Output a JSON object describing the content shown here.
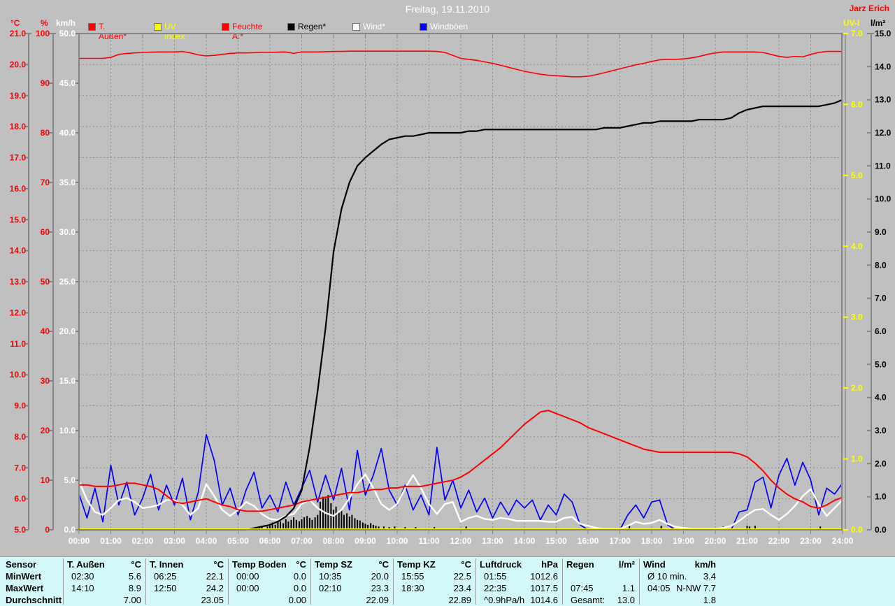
{
  "header": {
    "title": "Freitag, 19.11.2010",
    "author": "Jarz Erich"
  },
  "legend": [
    {
      "label": "T. Außen*",
      "color": "#ff0000",
      "label_color": "#ff0000"
    },
    {
      "label": "UV Index",
      "color": "#ffff00",
      "label_color": "#ffff00"
    },
    {
      "label": "Feuchte A.*",
      "color": "#ff0000",
      "label_color": "#ff0000"
    },
    {
      "label": "Regen*",
      "color": "#000000",
      "label_color": "#000000"
    },
    {
      "label": "Wind*",
      "color": "#ffffff",
      "label_color": "#ffffff"
    },
    {
      "label": "Windböen",
      "color": "#0000ff",
      "label_color": "#ffffff"
    }
  ],
  "chart_data": {
    "type": "line",
    "title": "Freitag, 19.11.2010",
    "x_axis": {
      "unit": "h",
      "min": 0,
      "max": 24,
      "tick_step_hours": 1
    },
    "x_labels": [
      "00:00",
      "01:00",
      "02:00",
      "03:00",
      "04:00",
      "05:00",
      "06:00",
      "07:00",
      "08:00",
      "09:00",
      "10:00",
      "11:00",
      "12:00",
      "13:00",
      "14:00",
      "15:00",
      "16:00",
      "17:00",
      "18:00",
      "19:00",
      "20:00",
      "21:00",
      "22:00",
      "23:00",
      "24:00"
    ],
    "grid": {
      "vertical_every_hour": true,
      "horizontal_every_degC": true,
      "color": "#8d8d8d",
      "style": "dashed"
    },
    "axes": [
      {
        "id": "temp",
        "unit": "°C",
        "min": 5,
        "max": 21,
        "step": 1,
        "decimals": 1,
        "color": "#ff0000",
        "side": "left"
      },
      {
        "id": "pct",
        "unit": "%",
        "min": 0,
        "max": 100,
        "step": 10,
        "decimals": 0,
        "color": "#ff0000",
        "side": "left"
      },
      {
        "id": "kmh",
        "unit": "km/h",
        "min": 0,
        "max": 50,
        "step": 5,
        "decimals": 1,
        "color": "#ffffff",
        "side": "left"
      },
      {
        "id": "uv",
        "unit": "UV-I",
        "min": 0,
        "max": 7,
        "step": 1,
        "decimals": 1,
        "color": "#ffff00",
        "side": "right"
      },
      {
        "id": "lm2",
        "unit": "l/m²",
        "min": 0,
        "max": 15,
        "step": 1,
        "decimals": 1,
        "color": "#000000",
        "side": "right"
      }
    ],
    "series": [
      {
        "name": "Feuchte A.",
        "axis": "pct",
        "color": "#ff0000",
        "width": 1.6,
        "step_h": 0.25,
        "values": [
          95.0,
          95.0,
          95.0,
          95.0,
          95.2,
          95.8,
          96.0,
          96.1,
          96.2,
          96.25,
          96.3,
          96.3,
          96.3,
          96.4,
          96.1,
          95.7,
          95.5,
          95.6,
          95.8,
          96.0,
          96.1,
          96.1,
          96.15,
          96.2,
          96.2,
          96.25,
          96.3,
          96.0,
          96.3,
          96.3,
          96.3,
          96.35,
          96.4,
          96.4,
          96.45,
          96.45,
          96.45,
          96.45,
          96.45,
          96.45,
          96.45,
          96.45,
          96.45,
          96.45,
          96.45,
          96.4,
          96.2,
          95.6,
          95.0,
          94.8,
          94.6,
          94.3,
          94.0,
          93.6,
          93.2,
          92.8,
          92.4,
          92.1,
          91.8,
          91.6,
          91.5,
          91.4,
          91.3,
          91.3,
          91.4,
          91.7,
          92.1,
          92.5,
          92.9,
          93.3,
          93.7,
          94.0,
          94.4,
          94.7,
          94.8,
          94.8,
          94.9,
          95.1,
          95.4,
          95.8,
          96.1,
          96.3,
          96.3,
          96.3,
          96.3,
          96.3,
          96.2,
          95.8,
          95.4,
          95.2,
          95.4,
          95.3,
          95.8,
          96.2,
          96.4,
          96.4,
          96.4
        ]
      },
      {
        "name": "Windböen",
        "axis": "kmh",
        "color": "#0000ff",
        "width": 1.7,
        "step_h": 0.25,
        "values": [
          3.6,
          1.2,
          4.2,
          0.8,
          6.5,
          2.5,
          4.8,
          1.5,
          3.2,
          5.6,
          2.0,
          4.5,
          2.5,
          5.2,
          1.0,
          3.8,
          9.6,
          7.0,
          2.5,
          4.2,
          1.5,
          4.0,
          5.8,
          2.2,
          3.5,
          1.8,
          4.8,
          2.5,
          4.2,
          6.0,
          2.8,
          5.5,
          3.0,
          6.2,
          2.0,
          8.0,
          3.5,
          5.5,
          8.2,
          4.0,
          2.5,
          4.5,
          2.0,
          3.5,
          1.5,
          8.3,
          3.0,
          5.0,
          2.2,
          4.0,
          1.8,
          3.2,
          1.2,
          2.8,
          1.5,
          3.0,
          2.2,
          3.0,
          1.0,
          2.5,
          1.5,
          3.6,
          2.8,
          0.5,
          0,
          0,
          0,
          0,
          0,
          1.5,
          2.5,
          1.2,
          2.8,
          3.0,
          0.5,
          0,
          0,
          0,
          0,
          0,
          0,
          0,
          0,
          1.8,
          2.0,
          4.8,
          5.3,
          2.2,
          5.5,
          7.2,
          4.5,
          6.8,
          5.0,
          1.5,
          4.2,
          3.6,
          4.7
        ]
      },
      {
        "name": "Wind",
        "axis": "kmh",
        "color": "#ffffff",
        "width": 2.4,
        "step_h": 0.25,
        "values": [
          4.9,
          3.0,
          1.8,
          1.5,
          2.2,
          3.0,
          3.2,
          2.8,
          2.2,
          2.3,
          2.5,
          3.0,
          3.0,
          2.5,
          1.5,
          2.2,
          4.6,
          3.4,
          2.0,
          1.4,
          2.0,
          2.8,
          2.4,
          1.6,
          1.1,
          1.0,
          1.4,
          1.6,
          2.6,
          3.0,
          2.2,
          1.7,
          1.4,
          2.0,
          3.2,
          4.6,
          5.6,
          4.2,
          2.6,
          2.0,
          2.6,
          4.2,
          5.5,
          4.2,
          2.6,
          1.6,
          2.6,
          2.8,
          0.8,
          1.2,
          1.4,
          1.1,
          1.0,
          1.2,
          1.1,
          0.9,
          0.9,
          0.9,
          0.9,
          0.8,
          0.8,
          1.2,
          1.3,
          0.6,
          0.4,
          0.2,
          0.1,
          0.1,
          0.1,
          0.4,
          0.8,
          0.6,
          0.7,
          1.0,
          0.6,
          0.3,
          0.2,
          0.1,
          0.1,
          0.1,
          0.1,
          0.2,
          0.4,
          0.9,
          1.5,
          2.0,
          2.1,
          1.5,
          1.0,
          1.6,
          2.4,
          3.4,
          4.1,
          2.6,
          1.4,
          2.2,
          3.0
        ]
      },
      {
        "name": "T. Außen",
        "axis": "temp",
        "color": "#ff0000",
        "width": 2,
        "step_h": 0.25,
        "values": [
          6.45,
          6.45,
          6.4,
          6.4,
          6.4,
          6.45,
          6.5,
          6.5,
          6.45,
          6.4,
          6.3,
          6.1,
          5.9,
          5.85,
          5.9,
          5.95,
          6.0,
          5.9,
          5.8,
          5.75,
          5.65,
          5.6,
          5.6,
          5.6,
          5.65,
          5.7,
          5.75,
          5.8,
          5.9,
          5.95,
          6.0,
          6.05,
          6.1,
          6.15,
          6.2,
          6.2,
          6.25,
          6.3,
          6.3,
          6.35,
          6.35,
          6.4,
          6.4,
          6.4,
          6.45,
          6.5,
          6.55,
          6.6,
          6.7,
          6.85,
          7.05,
          7.25,
          7.45,
          7.65,
          7.9,
          8.15,
          8.4,
          8.6,
          8.8,
          8.85,
          8.75,
          8.65,
          8.55,
          8.45,
          8.3,
          8.2,
          8.1,
          8.0,
          7.9,
          7.8,
          7.7,
          7.6,
          7.55,
          7.5,
          7.5,
          7.5,
          7.5,
          7.5,
          7.5,
          7.5,
          7.5,
          7.5,
          7.5,
          7.45,
          7.35,
          7.15,
          6.9,
          6.6,
          6.35,
          6.15,
          6.0,
          5.9,
          5.75,
          5.7,
          5.8,
          5.95,
          6.05
        ]
      },
      {
        "name": "Regen (Summe)",
        "axis": "lm2",
        "color": "#000000",
        "width": 2.2,
        "step_h": 0.25,
        "values": [
          0,
          0,
          0,
          0,
          0,
          0,
          0,
          0,
          0,
          0,
          0,
          0,
          0,
          0,
          0,
          0,
          0,
          0,
          0,
          0,
          0,
          0,
          0.05,
          0.1,
          0.15,
          0.25,
          0.4,
          0.65,
          1.2,
          2.5,
          4.2,
          6.1,
          8.4,
          9.7,
          10.5,
          11.0,
          11.25,
          11.45,
          11.65,
          11.8,
          11.85,
          11.9,
          11.9,
          11.95,
          12.0,
          12.0,
          12.0,
          12.0,
          12.0,
          12.05,
          12.05,
          12.1,
          12.1,
          12.1,
          12.1,
          12.1,
          12.1,
          12.1,
          12.1,
          12.1,
          12.1,
          12.1,
          12.1,
          12.1,
          12.1,
          12.1,
          12.15,
          12.15,
          12.15,
          12.2,
          12.25,
          12.3,
          12.3,
          12.35,
          12.35,
          12.35,
          12.35,
          12.35,
          12.4,
          12.4,
          12.4,
          12.4,
          12.45,
          12.6,
          12.7,
          12.75,
          12.8,
          12.8,
          12.8,
          12.8,
          12.8,
          12.8,
          12.8,
          12.8,
          12.85,
          12.9,
          13.0
        ]
      },
      {
        "name": "UV Index",
        "axis": "uv",
        "color": "#ffff00",
        "width": 2,
        "step_h": 12,
        "values": [
          0,
          0,
          0
        ]
      }
    ],
    "rain_bars": {
      "axis": "lm2",
      "color": "#000000",
      "points": [
        [
          5.67,
          0.08
        ],
        [
          5.75,
          0.12
        ],
        [
          5.92,
          0.1
        ],
        [
          6.0,
          0.12
        ],
        [
          6.08,
          0.22
        ],
        [
          6.17,
          0.15
        ],
        [
          6.25,
          0.3
        ],
        [
          6.33,
          0.25
        ],
        [
          6.42,
          0.2
        ],
        [
          6.5,
          0.32
        ],
        [
          6.58,
          0.25
        ],
        [
          6.67,
          0.3
        ],
        [
          6.75,
          0.38
        ],
        [
          6.83,
          0.3
        ],
        [
          6.92,
          0.26
        ],
        [
          7.0,
          0.32
        ],
        [
          7.08,
          0.38
        ],
        [
          7.17,
          0.42
        ],
        [
          7.25,
          0.36
        ],
        [
          7.33,
          0.3
        ],
        [
          7.42,
          0.38
        ],
        [
          7.5,
          0.45
        ],
        [
          7.58,
          0.85
        ],
        [
          7.67,
          1.0
        ],
        [
          7.75,
          0.95
        ],
        [
          7.83,
          1.05
        ],
        [
          7.92,
          0.8
        ],
        [
          8.0,
          0.6
        ],
        [
          8.08,
          0.7
        ],
        [
          8.17,
          0.55
        ],
        [
          8.25,
          0.6
        ],
        [
          8.33,
          0.45
        ],
        [
          8.42,
          0.5
        ],
        [
          8.5,
          0.4
        ],
        [
          8.58,
          0.45
        ],
        [
          8.67,
          0.35
        ],
        [
          8.75,
          0.3
        ],
        [
          8.83,
          0.28
        ],
        [
          8.92,
          0.22
        ],
        [
          9.0,
          0.18
        ],
        [
          9.08,
          0.15
        ],
        [
          9.17,
          0.2
        ],
        [
          9.25,
          0.15
        ],
        [
          9.33,
          0.12
        ],
        [
          9.42,
          0.1
        ],
        [
          9.58,
          0.1
        ],
        [
          9.75,
          0.08
        ],
        [
          9.92,
          0.1
        ],
        [
          10.25,
          0.08
        ],
        [
          10.58,
          0.08
        ],
        [
          11.17,
          0.08
        ],
        [
          12.17,
          0.1
        ],
        [
          17.3,
          0.12
        ],
        [
          18.3,
          0.12
        ],
        [
          20.25,
          0.1
        ],
        [
          21.0,
          0.12
        ],
        [
          21.08,
          0.1
        ],
        [
          21.25,
          0.12
        ],
        [
          23.3,
          0.1
        ]
      ]
    }
  },
  "table": {
    "row_labels": [
      "Sensor",
      "MinWert",
      "MaxWert",
      "Durchschnitt"
    ],
    "columns": [
      {
        "name": "T. Außen",
        "unit": "°C",
        "rows": [
          [
            "02:30",
            "5.6"
          ],
          [
            "14:10",
            "8.9"
          ],
          [
            "",
            "7.00"
          ]
        ]
      },
      {
        "name": "T. Innen",
        "unit": "°C",
        "rows": [
          [
            "06:25",
            "22.1"
          ],
          [
            "12:50",
            "24.2"
          ],
          [
            "",
            "23.05"
          ]
        ]
      },
      {
        "name": "Temp Boden",
        "unit": "°C",
        "rows": [
          [
            "00:00",
            "0.0"
          ],
          [
            "00:00",
            "0.0"
          ],
          [
            "",
            "0.00"
          ]
        ]
      },
      {
        "name": "Temp SZ",
        "unit": "°C",
        "rows": [
          [
            "10:35",
            "20.0"
          ],
          [
            "02:10",
            "23.3"
          ],
          [
            "",
            "22.09"
          ]
        ]
      },
      {
        "name": "Temp KZ",
        "unit": "°C",
        "rows": [
          [
            "15:55",
            "22.5"
          ],
          [
            "18:30",
            "23.4"
          ],
          [
            "",
            "22.89"
          ]
        ]
      },
      {
        "name": "Luftdruck",
        "unit": "hPa",
        "rows": [
          [
            "01:55",
            "1012.6"
          ],
          [
            "22:35",
            "1017.5"
          ],
          [
            "^0.9hPa/h",
            "1014.6"
          ]
        ]
      },
      {
        "name": "Regen",
        "unit": "l/m²",
        "rows": [
          [
            "",
            ""
          ],
          [
            "07:45",
            "1.1"
          ],
          [
            "Gesamt:",
            "13.0"
          ]
        ]
      },
      {
        "name": "Wind",
        "unit": "km/h",
        "rows": [
          [
            "Ø 10 min.",
            "3.4"
          ],
          [
            "04:05",
            "N-NW 7.7"
          ],
          [
            "",
            "1.8"
          ]
        ]
      }
    ]
  },
  "colors": {
    "background": "#c0c0c0",
    "grid": "#8d8d8d",
    "axis_line": "#868686",
    "x_label": "#ffffff",
    "table_bg": "#d2f8f8",
    "title": "#ffffff",
    "author": "#ff0000"
  }
}
